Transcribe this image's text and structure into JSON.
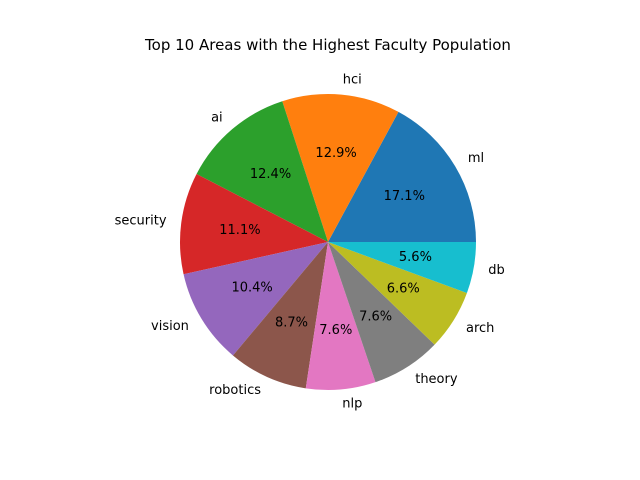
{
  "chart_data": {
    "type": "pie",
    "title": "Top 10 Areas with the Highest Faculty Population",
    "categories": [
      "ml",
      "hci",
      "ai",
      "security",
      "vision",
      "robotics",
      "nlp",
      "theory",
      "arch",
      "db"
    ],
    "values": [
      17.1,
      12.9,
      12.4,
      11.1,
      10.4,
      8.7,
      7.6,
      7.6,
      6.6,
      5.6
    ],
    "percent_labels": [
      "17.1%",
      "12.9%",
      "12.4%",
      "11.1%",
      "10.4%",
      "8.7%",
      "7.6%",
      "7.6%",
      "6.6%",
      "5.6%"
    ],
    "colors": [
      "#1f77b4",
      "#ff7f0e",
      "#2ca02c",
      "#d62728",
      "#9467bd",
      "#8c564b",
      "#e377c2",
      "#7f7f7f",
      "#bcbd22",
      "#17becf"
    ],
    "start_angle_deg": 0,
    "direction": "counterclockwise",
    "legend": "none"
  }
}
